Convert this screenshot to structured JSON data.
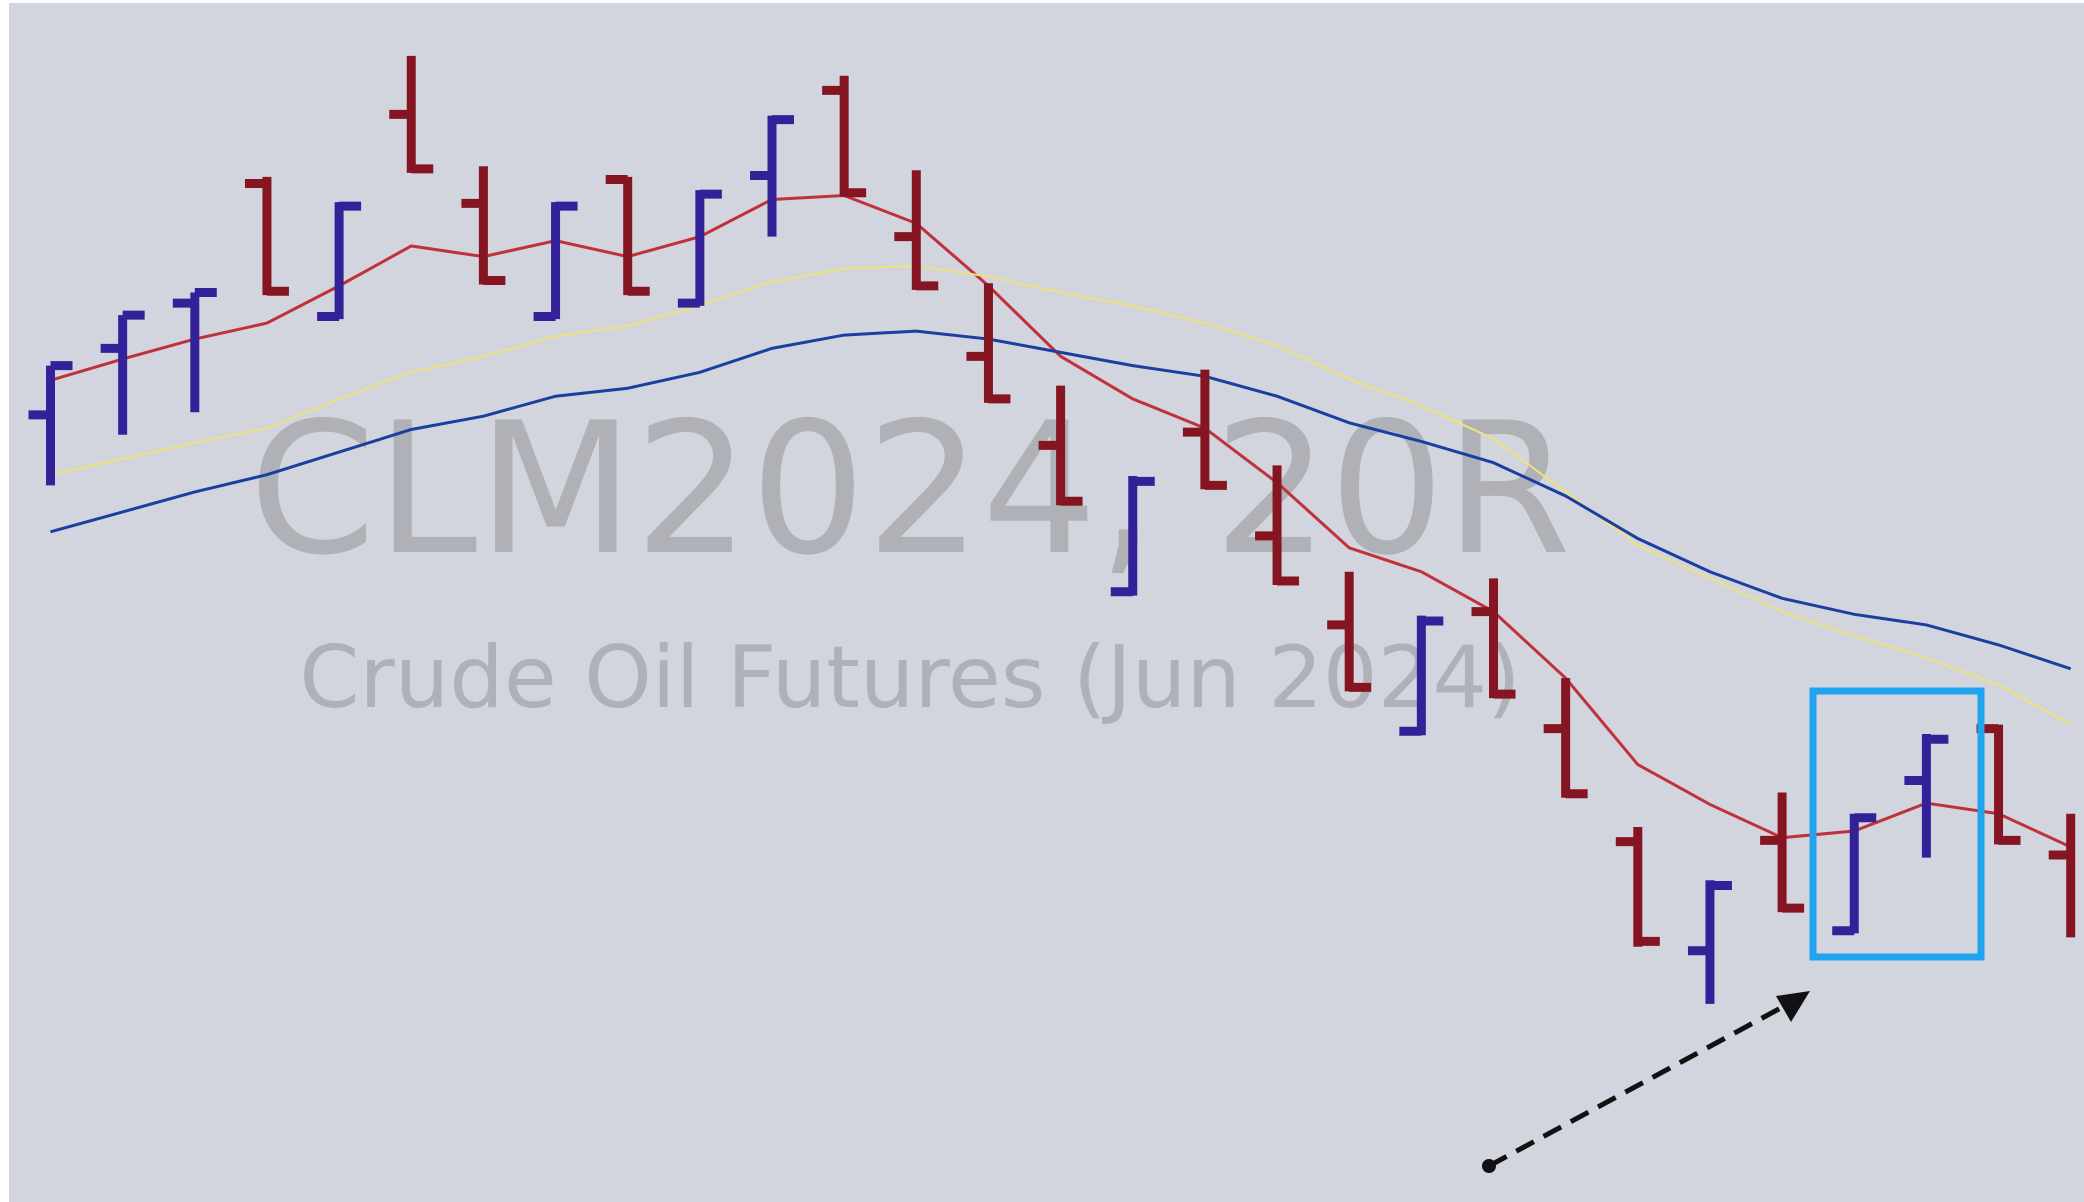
{
  "chart_data": {
    "type": "ohlc",
    "title": "CLM2024, 20R",
    "subtitle": "Crude Oil Futures (Jun 2024)",
    "categories": [
      null,
      null,
      null,
      null,
      null,
      null,
      null,
      null,
      null,
      null,
      null,
      null,
      null,
      null,
      null,
      null,
      null,
      null,
      null,
      null,
      null,
      null,
      null,
      null,
      null,
      null,
      null,
      null,
      null
    ],
    "ylim": [
      0,
      904
    ],
    "high": [
      629,
      667,
      684,
      771,
      752,
      862,
      779,
      752,
      771,
      761,
      817,
      847,
      776,
      691,
      614,
      546,
      626,
      554,
      474,
      441,
      469,
      394,
      282,
      242,
      308,
      292,
      352,
      359,
      292
    ],
    "low": [
      539,
      577,
      594,
      682,
      664,
      774,
      690,
      664,
      682,
      674,
      726,
      756,
      686,
      601,
      524,
      456,
      536,
      464,
      384,
      351,
      379,
      304,
      192,
      149,
      218,
      202,
      259,
      269,
      199
    ],
    "open": [
      592,
      642,
      676,
      766,
      666,
      818,
      751,
      666,
      769,
      676,
      772,
      836,
      726,
      636,
      569,
      459,
      579,
      501,
      434,
      354,
      444,
      356,
      271,
      189,
      272,
      204,
      317,
      356,
      261
    ],
    "close": [
      629,
      667,
      684,
      685,
      749,
      777,
      693,
      749,
      685,
      758,
      814,
      759,
      689,
      604,
      527,
      542,
      539,
      467,
      387,
      437,
      382,
      307,
      196,
      238,
      221,
      289,
      348,
      272,
      null
    ],
    "colors": [
      "#33219a",
      "#33219a",
      "#33219a",
      "#861522",
      "#33219a",
      "#861522",
      "#861522",
      "#33219a",
      "#861522",
      "#33219a",
      "#33219a",
      "#861522",
      "#861522",
      "#861522",
      "#861522",
      "#33219a",
      "#861522",
      "#861522",
      "#861522",
      "#33219a",
      "#861522",
      "#861522",
      "#861522",
      "#33219a",
      "#861522",
      "#33219a",
      "#33219a",
      "#861522",
      "#861522"
    ],
    "series": [
      {
        "color": "#c0313b",
        "values": [
          618,
          634,
          649,
          661,
          689,
          719,
          711,
          723,
          711,
          726,
          754,
          757,
          736,
          689,
          636,
          604,
          582,
          541,
          492,
          474,
          444,
          394,
          329,
          299,
          274,
          279,
          300,
          292,
          267
        ]
      },
      {
        "color": "#efe27a",
        "values": [
          547,
          559,
          571,
          582,
          604,
          624,
          636,
          651,
          659,
          674,
          692,
          702,
          704,
          696,
          684,
          674,
          661,
          644,
          619,
          599,
          574,
          534,
          494,
          469,
          444,
          426,
          409,
          389,
          359
        ]
      },
      {
        "color": "#1a3fa0",
        "values": [
          504,
          519,
          534,
          547,
          564,
          581,
          591,
          606,
          612,
          624,
          642,
          652,
          655,
          649,
          639,
          629,
          621,
          606,
          586,
          572,
          556,
          531,
          499,
          474,
          454,
          442,
          434,
          419,
          401
        ]
      }
    ]
  }
}
